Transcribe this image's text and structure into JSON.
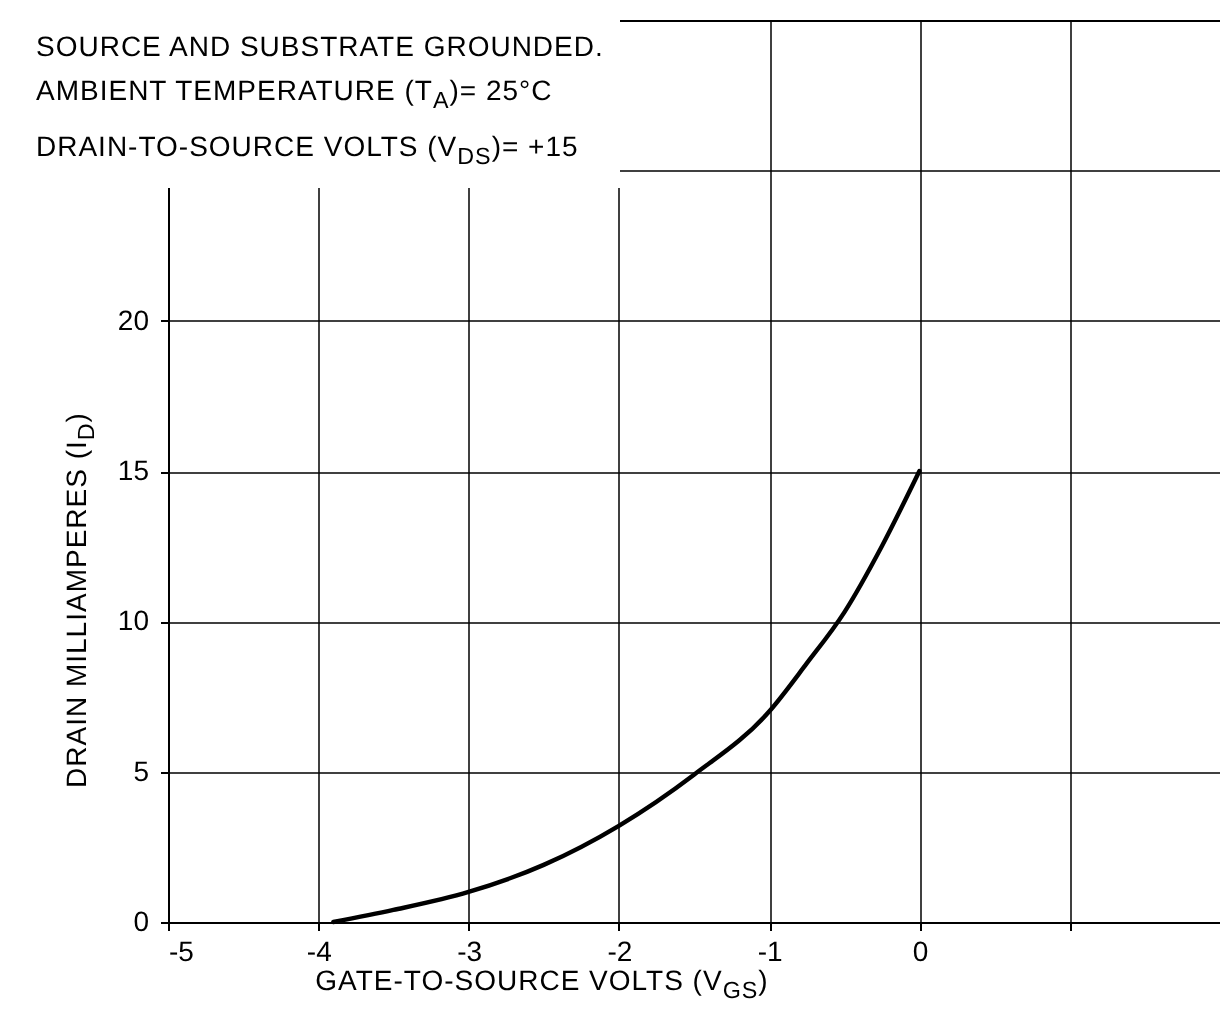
{
  "chart_data": {
    "type": "line",
    "annotations": [
      "SOURCE AND SUBSTRATE GROUNDED.",
      "AMBIENT TEMPERATURE (T$_{A}$)= 25°C",
      "DRAIN-TO-SOURCE VOLTS (V$_{DS}$)= +15"
    ],
    "xlabel": "GATE-TO-SOURCE VOLTS (V$_{GS}$)",
    "ylabel": "DRAIN MILLIAMPERES (I$_{D}$)",
    "series": [
      {
        "color": "#000000",
        "x": [
          -3.9,
          -3.5,
          -3,
          -2.5,
          -2,
          -1.5,
          -1,
          -0.75,
          -0.5,
          -0.25,
          0
        ],
        "values": [
          0,
          0.4,
          1,
          1.9,
          3.2,
          4.9,
          7,
          8.6,
          10.3,
          12.5,
          15
        ]
      }
    ],
    "xlim": [
      -5,
      2
    ],
    "ylim": [
      0,
      30
    ],
    "xticks": [
      -5,
      -4,
      -3,
      -2,
      -1,
      0,
      {
        "value": 1,
        "label": null
      },
      {
        "value": 2,
        "label": null
      }
    ],
    "yticks": [
      0,
      5,
      10,
      15,
      20,
      {
        "value": 25,
        "label": null
      },
      {
        "value": 30,
        "label": null
      }
    ],
    "grid": true,
    "marker": "none",
    "line_style": "solid"
  }
}
